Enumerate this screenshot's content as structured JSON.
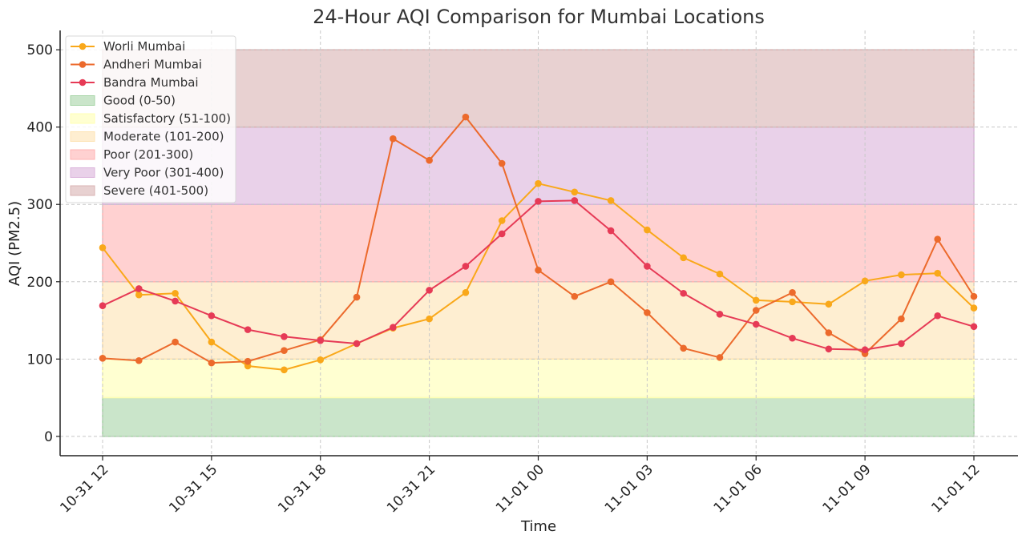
{
  "chart_data": {
    "type": "line",
    "title": "24-Hour AQI Comparison for Mumbai Locations",
    "xlabel": "Time",
    "ylabel": "AQI (PM2.5)",
    "x": [
      "10-31 12:00",
      "10-31 13:00",
      "10-31 14:00",
      "10-31 15:00",
      "10-31 16:00",
      "10-31 17:00",
      "10-31 18:00",
      "10-31 19:00",
      "10-31 20:00",
      "10-31 21:00",
      "10-31 22:00",
      "10-31 23:00",
      "11-01 00:00",
      "11-01 01:00",
      "11-01 02:00",
      "11-01 03:00",
      "11-01 04:00",
      "11-01 05:00",
      "11-01 06:00",
      "11-01 07:00",
      "11-01 08:00",
      "11-01 09:00",
      "11-01 10:00",
      "11-01 11:00",
      "11-01 12:00"
    ],
    "xticks": [
      "10-31 12",
      "10-31 15",
      "10-31 18",
      "10-31 21",
      "11-01 00",
      "11-01 03",
      "11-01 06",
      "11-01 09",
      "11-01 12"
    ],
    "yticks": [
      0,
      100,
      200,
      300,
      400,
      500
    ],
    "ylim": [
      -25,
      525
    ],
    "grid": true,
    "legend_position": "top-left",
    "series": [
      {
        "name": "Worli Mumbai",
        "color": "#f9a81a",
        "values": [
          244,
          183,
          185,
          122,
          91,
          86,
          99,
          120,
          140,
          152,
          186,
          279,
          327,
          316,
          305,
          267,
          231,
          210,
          176,
          174,
          171,
          201,
          209,
          211,
          166
        ]
      },
      {
        "name": "Andheri Mumbai",
        "color": "#ec6a2c",
        "values": [
          101,
          98,
          122,
          95,
          97,
          111,
          125,
          180,
          385,
          357,
          413,
          353,
          215,
          181,
          200,
          160,
          114,
          102,
          163,
          186,
          134,
          107,
          152,
          255,
          181
        ]
      },
      {
        "name": "Bandra Mumbai",
        "color": "#e63a56",
        "values": [
          169,
          191,
          175,
          156,
          138,
          129,
          124,
          120,
          141,
          189,
          220,
          262,
          304,
          305,
          266,
          220,
          185,
          158,
          145,
          127,
          113,
          112,
          120,
          156,
          142
        ]
      }
    ],
    "bands": [
      {
        "name": "Good (0-50)",
        "from": 0,
        "to": 50,
        "color": "#a6d4a6"
      },
      {
        "name": "Satisfactory (51-100)",
        "from": 50,
        "to": 100,
        "color": "#ffffb3"
      },
      {
        "name": "Moderate (101-200)",
        "from": 100,
        "to": 200,
        "color": "#fde3b3"
      },
      {
        "name": "Poor (201-300)",
        "from": 200,
        "to": 300,
        "color": "#ffb3b3"
      },
      {
        "name": "Very Poor (301-400)",
        "from": 300,
        "to": 400,
        "color": "#dbb3db"
      },
      {
        "name": "Severe (401-500)",
        "from": 400,
        "to": 500,
        "color": "#d9b3b3"
      }
    ]
  }
}
